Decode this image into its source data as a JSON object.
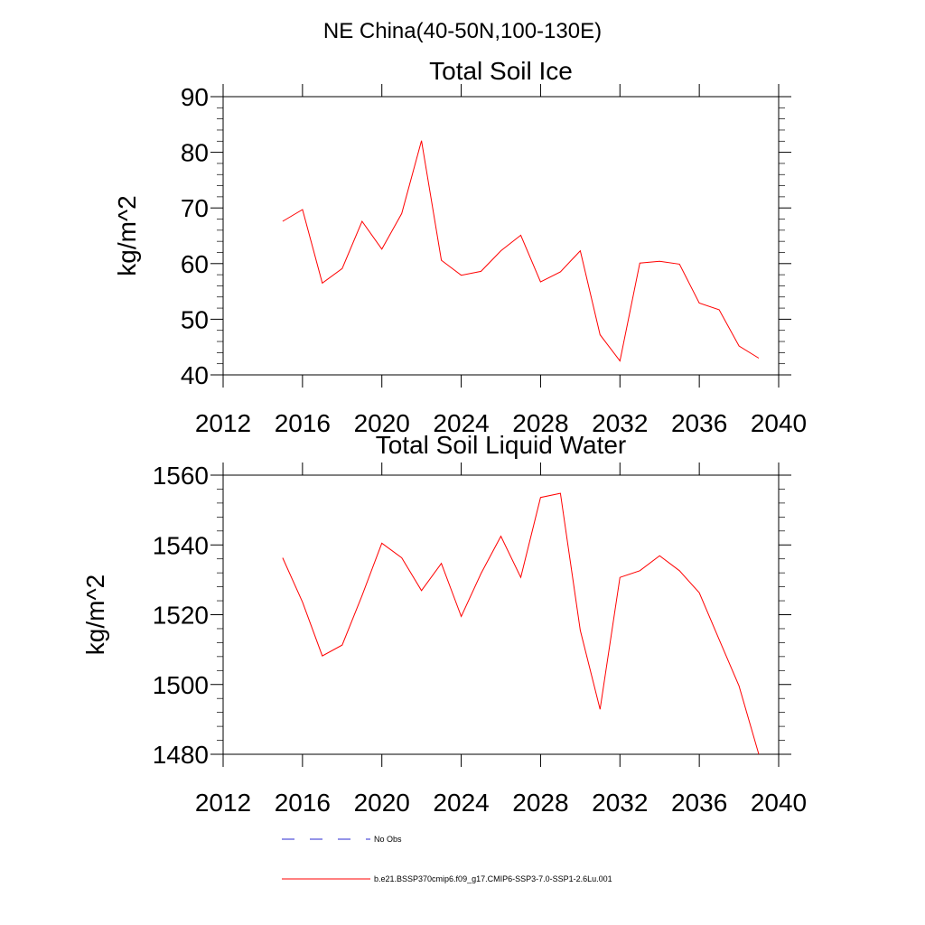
{
  "page_title": "NE China(40-50N,100-130E)",
  "legend": [
    {
      "label": "No Obs",
      "style": "dashed",
      "color": "#2b2bd0"
    },
    {
      "label": "b.e21.BSSP370cmip6.f09_g17.CMIP6-SSP3-7.0-SSP1-2.6Lu.001",
      "style": "solid",
      "color": "#ff0000"
    }
  ],
  "chart_data": [
    {
      "type": "line",
      "title": "Total Soil Ice",
      "xlabel": "",
      "ylabel": "kg/m^2",
      "xlim": [
        2012,
        2040
      ],
      "ylim": [
        40,
        90
      ],
      "xticks": [
        2012,
        2016,
        2020,
        2024,
        2028,
        2032,
        2036,
        2040
      ],
      "yticks": [
        40,
        50,
        60,
        70,
        80,
        90
      ],
      "grid": false,
      "series": [
        {
          "color": "#ff0000",
          "x": [
            2015,
            2016,
            2017,
            2018,
            2019,
            2020,
            2021,
            2022,
            2023,
            2024,
            2025,
            2026,
            2027,
            2028,
            2029,
            2030,
            2031,
            2032,
            2033,
            2034,
            2035,
            2036,
            2037,
            2038,
            2039
          ],
          "y": [
            67.6,
            69.7,
            56.5,
            59.1,
            67.6,
            62.6,
            69.0,
            82.1,
            60.6,
            57.9,
            58.6,
            62.3,
            65.1,
            56.7,
            58.5,
            62.3,
            47.2,
            42.5,
            60.1,
            60.4,
            59.9,
            52.9,
            51.7,
            45.2,
            43.0
          ]
        }
      ]
    },
    {
      "type": "line",
      "title": "Total Soil Liquid Water",
      "xlabel": "",
      "ylabel": "kg/m^2",
      "xlim": [
        2012,
        2040
      ],
      "ylim": [
        1480,
        1560
      ],
      "xticks": [
        2012,
        2016,
        2020,
        2024,
        2028,
        2032,
        2036,
        2040
      ],
      "yticks": [
        1480,
        1500,
        1520,
        1540,
        1560
      ],
      "grid": false,
      "series": [
        {
          "color": "#ff0000",
          "x": [
            2015,
            2016,
            2017,
            2018,
            2019,
            2020,
            2021,
            2022,
            2023,
            2024,
            2025,
            2026,
            2027,
            2028,
            2029,
            2030,
            2031,
            2032,
            2033,
            2034,
            2035,
            2036,
            2037,
            2038,
            2039
          ],
          "y": [
            1536.3,
            1523.6,
            1508.2,
            1511.3,
            1525.5,
            1540.5,
            1536.3,
            1526.9,
            1534.7,
            1519.5,
            1531.8,
            1542.5,
            1530.7,
            1553.6,
            1554.8,
            1515.5,
            1492.9,
            1530.7,
            1532.6,
            1536.9,
            1532.6,
            1526.3,
            1512.9,
            1499.6,
            1480.0
          ]
        }
      ]
    }
  ]
}
